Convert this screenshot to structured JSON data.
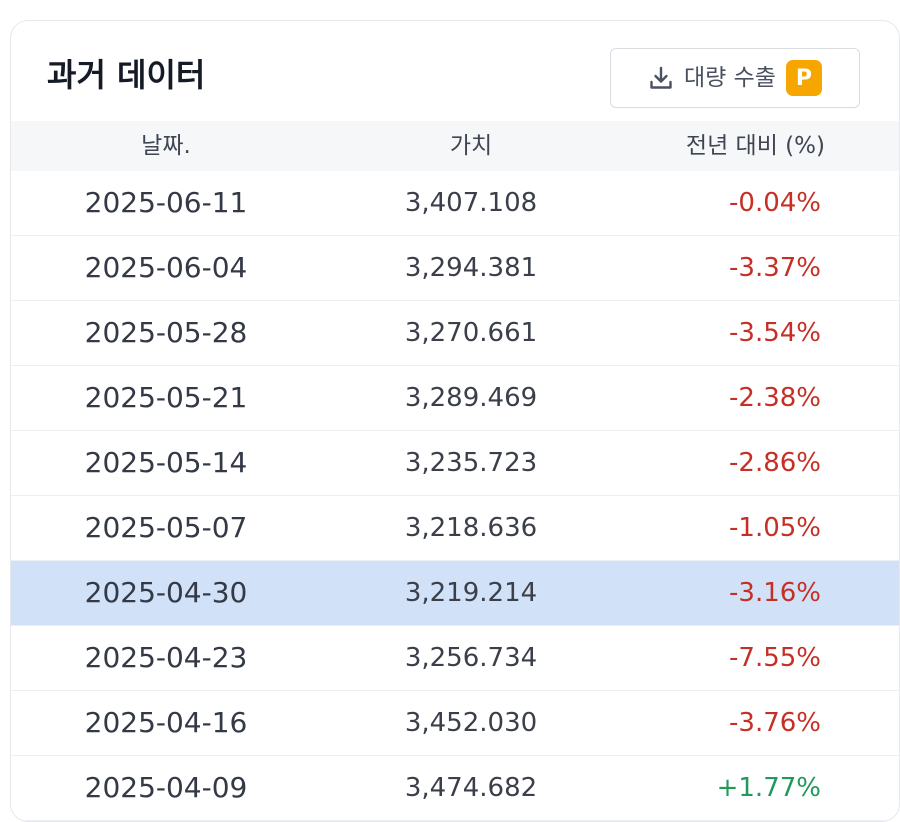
{
  "header": {
    "title": "과거 데이터",
    "export_label": "대량 수출",
    "badge": "P",
    "badge_color": "#f7a600"
  },
  "columns": {
    "date": "날짜.",
    "value": "가치",
    "change": "전년 대비 (%)"
  },
  "rows": [
    {
      "date": "2025-06-11",
      "value": "3,407.108",
      "change": "-0.04%",
      "direction": "down"
    },
    {
      "date": "2025-06-04",
      "value": "3,294.381",
      "change": "-3.37%",
      "direction": "down"
    },
    {
      "date": "2025-05-28",
      "value": "3,270.661",
      "change": "-3.54%",
      "direction": "down"
    },
    {
      "date": "2025-05-21",
      "value": "3,289.469",
      "change": "-2.38%",
      "direction": "down"
    },
    {
      "date": "2025-05-14",
      "value": "3,235.723",
      "change": "-2.86%",
      "direction": "down"
    },
    {
      "date": "2025-05-07",
      "value": "3,218.636",
      "change": "-1.05%",
      "direction": "down"
    },
    {
      "date": "2025-04-30",
      "value": "3,219.214",
      "change": "-3.16%",
      "direction": "down",
      "highlighted": true
    },
    {
      "date": "2025-04-23",
      "value": "3,256.734",
      "change": "-7.55%",
      "direction": "down"
    },
    {
      "date": "2025-04-16",
      "value": "3,452.030",
      "change": "-3.76%",
      "direction": "down"
    },
    {
      "date": "2025-04-09",
      "value": "3,474.682",
      "change": "+1.77%",
      "direction": "up"
    }
  ],
  "colors": {
    "negative": "#c62f25",
    "positive": "#1e9a5a",
    "highlight_row": "#d1e1f8"
  },
  "icons": {
    "export": "download-icon"
  }
}
